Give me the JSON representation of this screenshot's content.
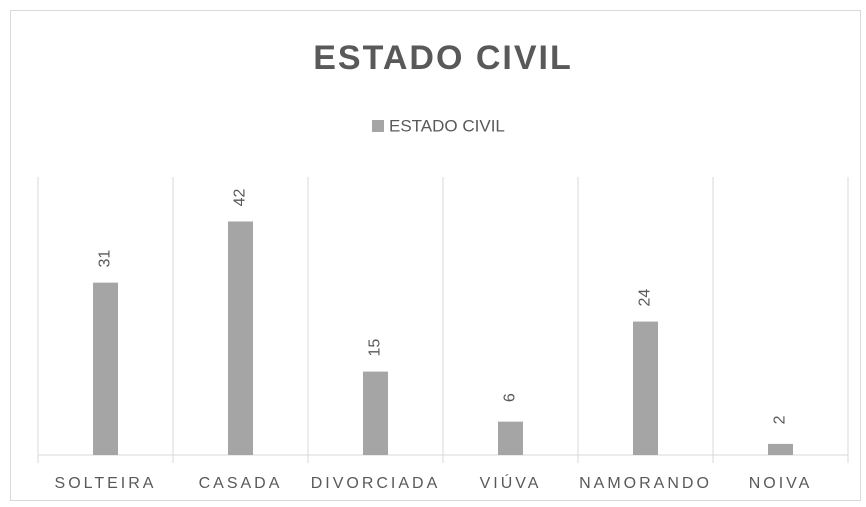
{
  "chart_data": {
    "type": "bar",
    "title": "ESTADO CIVIL",
    "legend": "ESTADO CIVIL",
    "categories": [
      "SOLTEIRA",
      "CASADA",
      "DIVORCIADA",
      "VIÚVA",
      "NAMORANDO",
      "NOIVA"
    ],
    "values": [
      31,
      42,
      15,
      6,
      24,
      2
    ],
    "color": "#a5a5a5",
    "ylim": [
      0,
      50
    ],
    "legend_position": "top"
  }
}
